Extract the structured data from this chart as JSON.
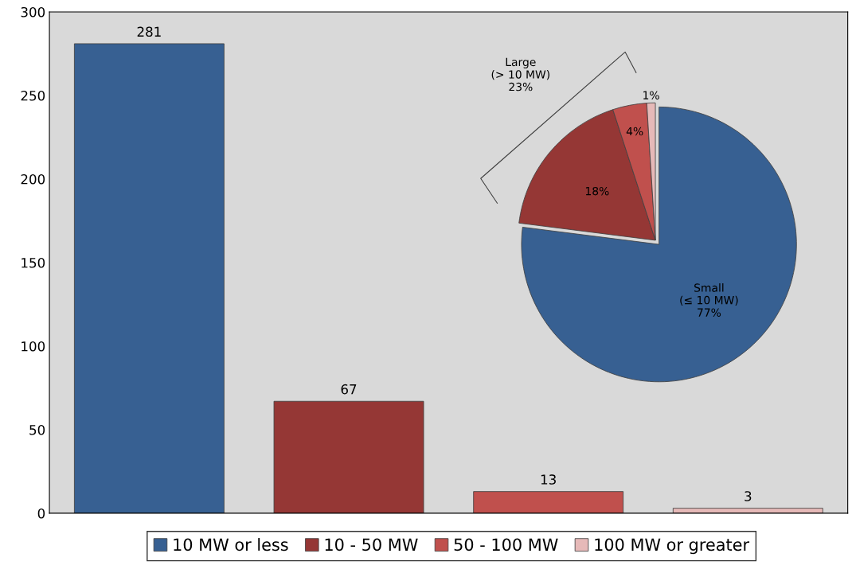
{
  "chart_data": [
    {
      "type": "bar",
      "categories": [
        null,
        null,
        null,
        null
      ],
      "series": [
        {
          "name": "10 MW or less",
          "color": "#376092",
          "values": [
            281,
            null,
            null,
            null
          ]
        },
        {
          "name": "10 - 50 MW",
          "color": "#953735",
          "values": [
            null,
            67,
            null,
            null
          ]
        },
        {
          "name": "50 - 100 MW",
          "color": "#c0504d",
          "values": [
            null,
            null,
            13,
            null
          ]
        },
        {
          "name": "100 MW or greater",
          "color": "#e6b9b8",
          "values": [
            null,
            null,
            null,
            3
          ]
        }
      ],
      "ylim": [
        0,
        300
      ],
      "yticks": [
        0,
        50,
        100,
        150,
        200,
        250,
        300
      ],
      "data_labels": true,
      "legend": "bottom",
      "grid": false
    },
    {
      "type": "pie",
      "categories": [
        "Small\n(≤ 10 MW)",
        null,
        null,
        null
      ],
      "values": [
        77,
        18,
        4,
        1
      ],
      "colors": [
        "#376092",
        "#953735",
        "#c0504d",
        "#e6b9b8"
      ],
      "value_labels": [
        "77%",
        "18%",
        "4%",
        "1%"
      ],
      "annotations": [
        "Large\n(> 10 MW)\n23%"
      ],
      "legend": false
    }
  ]
}
